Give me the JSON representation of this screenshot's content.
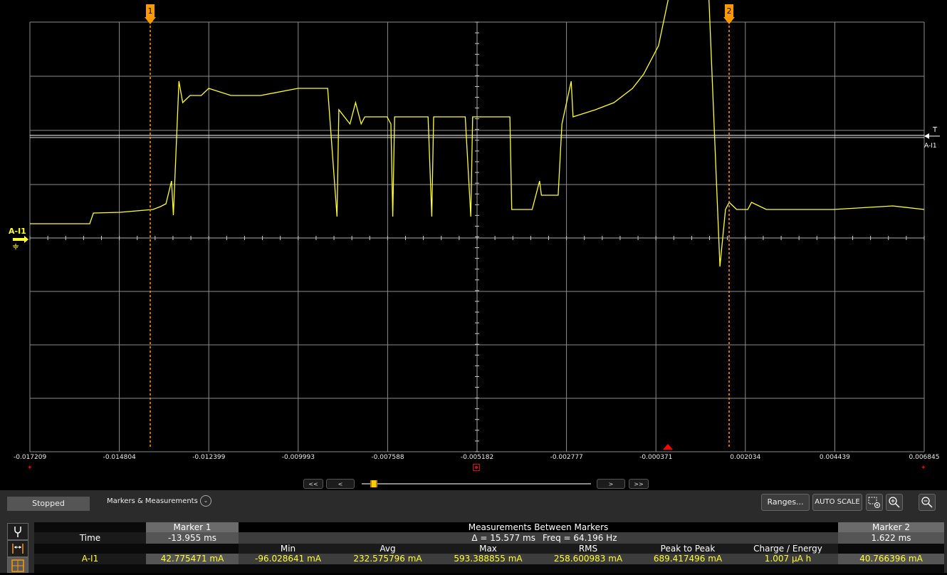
{
  "colors": {
    "trace": "#ffff33",
    "marker": "#ff9900",
    "grid": "#8c8c8c",
    "trigger": "#ff0000"
  },
  "scope": {
    "channel": "A-I1",
    "trigger_label": "T",
    "trigger_channel": "A-I1",
    "markers": [
      "1",
      "2"
    ],
    "x_ticks": [
      "-0.017209",
      "-0.014804",
      "-0.012399",
      "-0.009993",
      "-0.007588",
      "-0.005182",
      "-0.002777",
      "-0.000371",
      "0.002034",
      "0.004439",
      "0.006845"
    ]
  },
  "chart_data": {
    "type": "line",
    "xlabel": "",
    "ylabel": "",
    "xlim": [
      -0.017209,
      0.006845
    ],
    "grid": true,
    "series": [
      {
        "x": [
          -0.017209,
          -0.0156,
          -0.0155,
          -0.0148,
          -0.0139,
          -0.0137,
          -0.01355,
          -0.0134,
          -0.01335,
          -0.0132,
          -0.0131,
          -0.0129,
          -0.0126,
          -0.0124,
          -0.0118,
          -0.011,
          -0.01,
          -0.0092,
          -0.00895,
          -0.0089,
          -0.0086,
          -0.00845,
          -0.0083,
          -0.0082,
          -0.0078,
          -0.0076,
          -0.0075,
          -0.00745,
          -0.0074,
          -0.007,
          -0.0065,
          -0.0064,
          -0.00635,
          -0.0063,
          -0.0055,
          -0.00535,
          -0.0053,
          -0.00525,
          -0.0043,
          -0.00425,
          -0.0042,
          -0.0039,
          -0.0037,
          -0.0035,
          -0.00345,
          -0.003,
          -0.0029,
          -0.00265,
          -0.0026,
          -0.0023,
          -0.002,
          -0.0015,
          -0.001,
          -0.0007,
          -0.0003,
          -0.0001,
          0.0001,
          0.0003,
          0.0006,
          0.0009,
          0.001,
          0.00135,
          0.0015,
          0.0016,
          0.0018,
          0.0021,
          0.0022,
          0.0026,
          0.0044,
          0.006,
          0.006845
        ],
        "y": [
          2.0,
          2.0,
          3.5,
          3.6,
          4.0,
          4.4,
          4.8,
          8.0,
          3.2,
          22.0,
          19.0,
          20.0,
          20.0,
          21.0,
          20.0,
          20.0,
          21.0,
          21.0,
          3.0,
          18.0,
          16.0,
          19.0,
          16.0,
          17.0,
          17.0,
          17.0,
          16.0,
          3.0,
          17.0,
          17.0,
          17.0,
          3.0,
          17.0,
          17.0,
          17.0,
          3.0,
          17.0,
          17.0,
          17.0,
          4.0,
          4.0,
          4.0,
          4.0,
          8.0,
          6.0,
          6.0,
          16.0,
          22.0,
          17.0,
          17.5,
          18.0,
          19.0,
          21.0,
          23.0,
          27.0,
          32.0,
          37.0,
          40.0,
          41.5,
          42.5,
          40.5,
          -4.0,
          4.0,
          5.0,
          4.0,
          4.0,
          5.0,
          4.0,
          4.0,
          4.5,
          4.0
        ]
      }
    ]
  },
  "nav": {
    "first": "<<",
    "prev": "<",
    "next": ">",
    "last": ">>"
  },
  "panel": {
    "status": "Stopped",
    "markers_measurements": "Markers & Measurements",
    "ranges": "Ranges...",
    "auto_scale": "AUTO SCALE"
  },
  "table": {
    "marker1_header": "Marker 1",
    "between_header": "Measurements Between Markers",
    "marker2_header": "Marker 2",
    "time_label": "Time",
    "marker1_time": "-13.955 ms",
    "delta": "Δ = 15.577 ms",
    "freq": "Freq = 64.196 Hz",
    "marker2_time": "1.622 ms",
    "columns": [
      "Min",
      "Avg",
      "Max",
      "RMS",
      "Peak to Peak",
      "Charge / Energy"
    ],
    "row_label": "A-I1",
    "marker1_value": "42.775471 mA",
    "values": [
      "-96.028641 mA",
      "232.575796 mA",
      "593.388855 mA",
      "258.600983 mA",
      "689.417496 mA",
      "1.007 µA h"
    ],
    "marker2_value": "40.766396 mA"
  }
}
